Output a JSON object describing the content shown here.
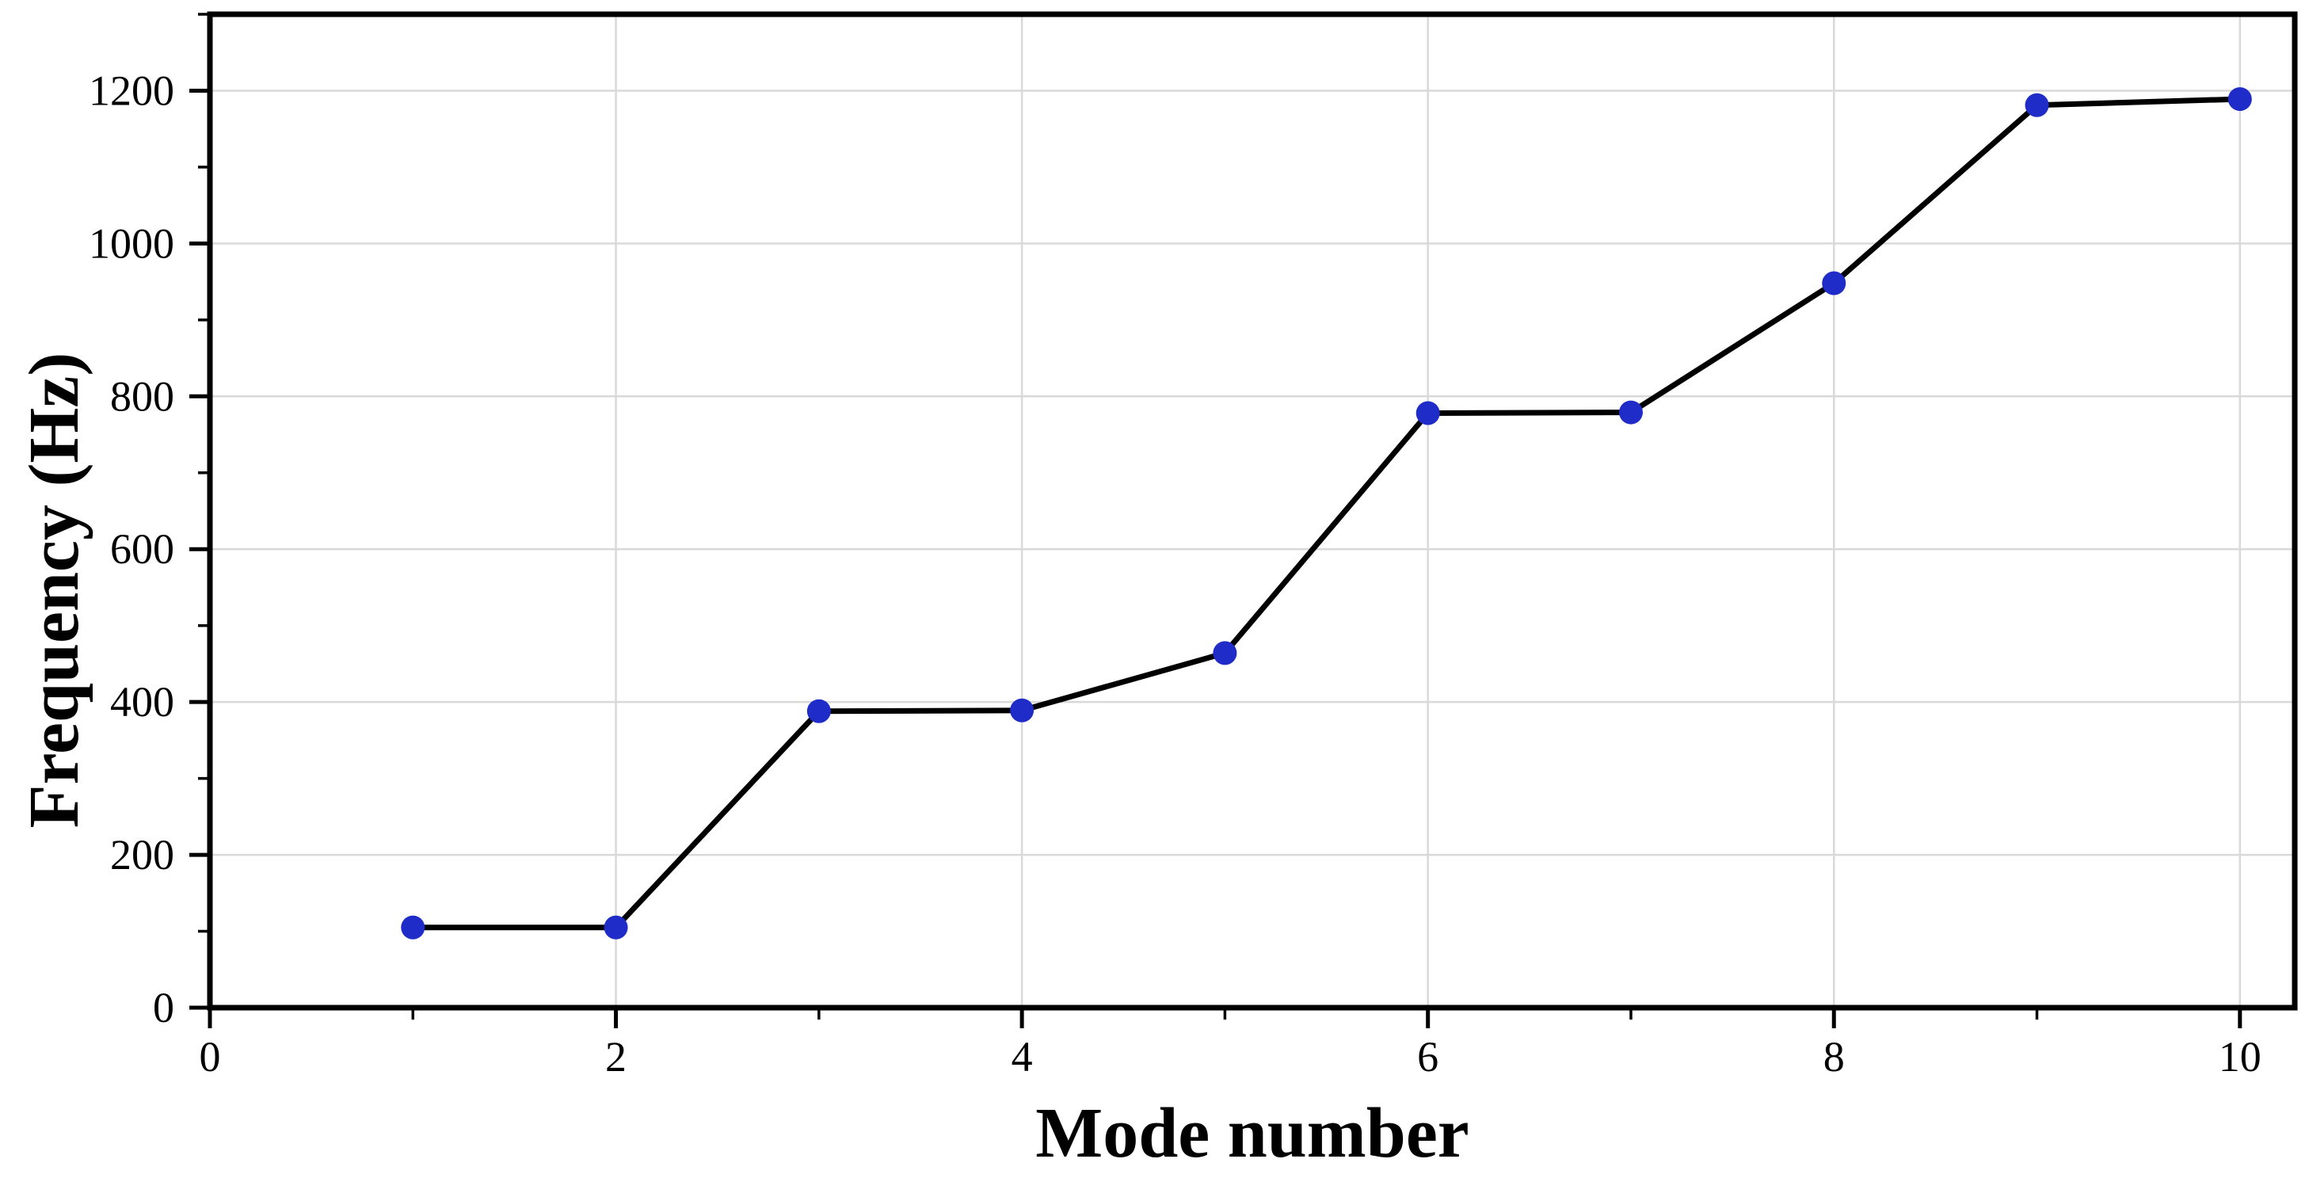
{
  "figure": {
    "background_color": "#ffffff",
    "title": ""
  },
  "chart_data": {
    "type": "line",
    "title": "",
    "xlabel": "Mode number",
    "ylabel": "Frequency (Hz)",
    "series": [
      {
        "x": [
          1,
          2,
          3,
          4,
          5,
          6,
          7,
          8,
          9,
          10
        ],
        "y": [
          105,
          105,
          388,
          389,
          464,
          778,
          779,
          948,
          1181,
          1189
        ],
        "line_color": "#000000",
        "line_width": 7,
        "marker": "circle",
        "marker_color": "#1f2cc8",
        "marker_radius": 15
      }
    ],
    "xlim": [
      0,
      10.27
    ],
    "ylim": [
      0,
      1300
    ],
    "x_major_ticks": [
      0,
      2,
      4,
      6,
      8,
      10
    ],
    "x_major_tick_labels": [
      "0",
      "2",
      "4",
      "6",
      "8",
      "10"
    ],
    "x_minor_ticks": [
      1,
      3,
      5,
      7,
      9
    ],
    "y_major_ticks": [
      0,
      200,
      400,
      600,
      800,
      1000,
      1200
    ],
    "y_major_tick_labels": [
      "0",
      "200",
      "400",
      "600",
      "800",
      "1000",
      "1200"
    ],
    "y_minor_ticks": [
      100,
      300,
      500,
      700,
      900,
      1100,
      1300
    ],
    "grid": {
      "show_major": true,
      "show_minor": false,
      "color": "#d9d9d9"
    },
    "legend": {
      "visible": false
    },
    "axis_color": "#000000",
    "frame": "box"
  }
}
